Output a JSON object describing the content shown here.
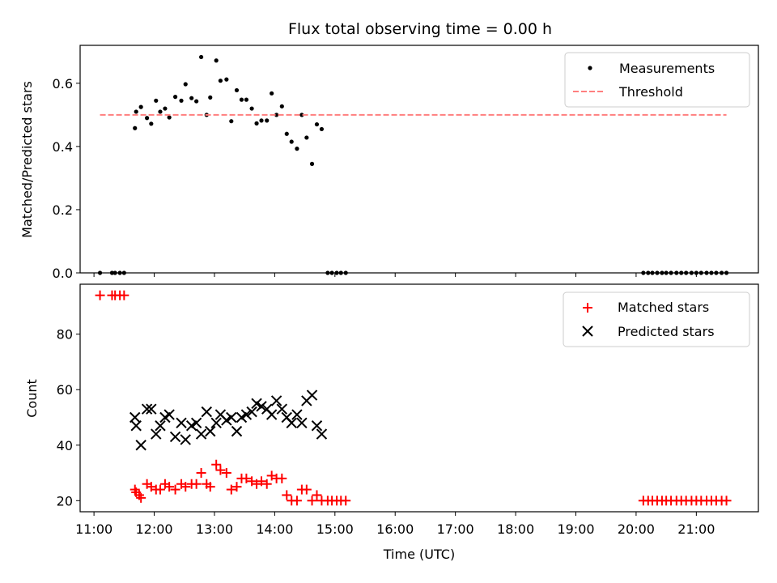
{
  "chart_data": [
    {
      "type": "scatter",
      "title": "Flux total observing time = 0.00 h",
      "xlabel": "",
      "ylabel": "Matched/Predicted stars",
      "xlim": [
        10.77,
        22.03
      ],
      "ylim": [
        0.0,
        0.72
      ],
      "yticks": [
        0.0,
        0.2,
        0.4,
        0.6
      ],
      "ytick_labels": [
        "0.0",
        "0.2",
        "0.4",
        "0.6"
      ],
      "legend_position": "upper right",
      "series": [
        {
          "name": "Measurements",
          "color": "#000000",
          "marker": "dot",
          "points": [
            [
              11.1,
              0.0
            ],
            [
              11.3,
              0.0
            ],
            [
              11.35,
              0.0
            ],
            [
              11.43,
              0.0
            ],
            [
              11.5,
              0.0
            ],
            [
              11.68,
              0.458
            ],
            [
              11.7,
              0.51
            ],
            [
              11.78,
              0.525
            ],
            [
              11.88,
              0.49
            ],
            [
              11.95,
              0.472
            ],
            [
              12.03,
              0.545
            ],
            [
              12.1,
              0.51
            ],
            [
              12.18,
              0.52
            ],
            [
              12.25,
              0.492
            ],
            [
              12.35,
              0.557
            ],
            [
              12.45,
              0.545
            ],
            [
              12.52,
              0.597
            ],
            [
              12.62,
              0.553
            ],
            [
              12.7,
              0.543
            ],
            [
              12.78,
              0.683
            ],
            [
              12.87,
              0.5
            ],
            [
              12.93,
              0.555
            ],
            [
              13.03,
              0.672
            ],
            [
              13.1,
              0.608
            ],
            [
              13.2,
              0.612
            ],
            [
              13.28,
              0.48
            ],
            [
              13.37,
              0.578
            ],
            [
              13.45,
              0.548
            ],
            [
              13.53,
              0.548
            ],
            [
              13.62,
              0.52
            ],
            [
              13.7,
              0.473
            ],
            [
              13.78,
              0.482
            ],
            [
              13.87,
              0.482
            ],
            [
              13.95,
              0.568
            ],
            [
              14.03,
              0.5
            ],
            [
              14.12,
              0.527
            ],
            [
              14.2,
              0.44
            ],
            [
              14.28,
              0.415
            ],
            [
              14.37,
              0.393
            ],
            [
              14.45,
              0.5
            ],
            [
              14.53,
              0.428
            ],
            [
              14.62,
              0.345
            ],
            [
              14.7,
              0.47
            ],
            [
              14.78,
              0.455
            ],
            [
              14.88,
              0.0
            ],
            [
              14.95,
              0.0
            ],
            [
              15.03,
              0.0
            ],
            [
              15.1,
              0.0
            ],
            [
              15.18,
              0.0
            ],
            [
              20.12,
              0.0
            ],
            [
              20.2,
              0.0
            ],
            [
              20.27,
              0.0
            ],
            [
              20.35,
              0.0
            ],
            [
              20.43,
              0.0
            ],
            [
              20.5,
              0.0
            ],
            [
              20.58,
              0.0
            ],
            [
              20.67,
              0.0
            ],
            [
              20.75,
              0.0
            ],
            [
              20.83,
              0.0
            ],
            [
              20.92,
              0.0
            ],
            [
              21.0,
              0.0
            ],
            [
              21.08,
              0.0
            ],
            [
              21.17,
              0.0
            ],
            [
              21.25,
              0.0
            ],
            [
              21.33,
              0.0
            ],
            [
              21.42,
              0.0
            ],
            [
              21.5,
              0.0
            ]
          ]
        },
        {
          "name": "Threshold",
          "color": "#ff7f7f",
          "style": "dashed",
          "x": [
            11.1,
            21.5
          ],
          "y": [
            0.5,
            0.5
          ]
        }
      ]
    },
    {
      "type": "scatter",
      "title": "",
      "xlabel": "Time (UTC)",
      "ylabel": "Count",
      "xlim": [
        10.77,
        22.03
      ],
      "ylim": [
        16.0,
        98.0
      ],
      "yticks": [
        20,
        40,
        60,
        80
      ],
      "ytick_labels": [
        "20",
        "40",
        "60",
        "80"
      ],
      "xticks": [
        11,
        12,
        13,
        14,
        15,
        16,
        17,
        18,
        19,
        20,
        21
      ],
      "xtick_labels": [
        "11:00",
        "12:00",
        "13:00",
        "14:00",
        "15:00",
        "16:00",
        "17:00",
        "18:00",
        "19:00",
        "20:00",
        "21:00"
      ],
      "legend_position": "upper right",
      "series": [
        {
          "name": "Matched stars",
          "color": "#ff0000",
          "marker": "plus",
          "points": [
            [
              11.1,
              94
            ],
            [
              11.3,
              94
            ],
            [
              11.35,
              94
            ],
            [
              11.43,
              94
            ],
            [
              11.5,
              94
            ],
            [
              11.68,
              24
            ],
            [
              11.7,
              23
            ],
            [
              11.75,
              22
            ],
            [
              11.78,
              21
            ],
            [
              11.88,
              26
            ],
            [
              11.95,
              25
            ],
            [
              12.03,
              24
            ],
            [
              12.1,
              24
            ],
            [
              12.18,
              26
            ],
            [
              12.25,
              25
            ],
            [
              12.35,
              24
            ],
            [
              12.45,
              26
            ],
            [
              12.52,
              25
            ],
            [
              12.62,
              26
            ],
            [
              12.7,
              26
            ],
            [
              12.78,
              30
            ],
            [
              12.87,
              26
            ],
            [
              12.93,
              25
            ],
            [
              13.03,
              33
            ],
            [
              13.1,
              31
            ],
            [
              13.2,
              30
            ],
            [
              13.28,
              24
            ],
            [
              13.37,
              25
            ],
            [
              13.45,
              28
            ],
            [
              13.53,
              28
            ],
            [
              13.62,
              27
            ],
            [
              13.7,
              26
            ],
            [
              13.78,
              27
            ],
            [
              13.87,
              26
            ],
            [
              13.95,
              29
            ],
            [
              14.03,
              28
            ],
            [
              14.12,
              28
            ],
            [
              14.2,
              22
            ],
            [
              14.28,
              20
            ],
            [
              14.37,
              20
            ],
            [
              14.45,
              24
            ],
            [
              14.53,
              24
            ],
            [
              14.62,
              20
            ],
            [
              14.7,
              22
            ],
            [
              14.78,
              20
            ],
            [
              14.88,
              20
            ],
            [
              14.95,
              20
            ],
            [
              15.03,
              20
            ],
            [
              15.1,
              20
            ],
            [
              15.18,
              20
            ],
            [
              20.12,
              20
            ],
            [
              20.2,
              20
            ],
            [
              20.27,
              20
            ],
            [
              20.35,
              20
            ],
            [
              20.43,
              20
            ],
            [
              20.5,
              20
            ],
            [
              20.58,
              20
            ],
            [
              20.67,
              20
            ],
            [
              20.75,
              20
            ],
            [
              20.83,
              20
            ],
            [
              20.92,
              20
            ],
            [
              21.0,
              20
            ],
            [
              21.08,
              20
            ],
            [
              21.17,
              20
            ],
            [
              21.25,
              20
            ],
            [
              21.33,
              20
            ],
            [
              21.42,
              20
            ],
            [
              21.5,
              20
            ]
          ]
        },
        {
          "name": "Predicted stars",
          "color": "#000000",
          "marker": "x",
          "points": [
            [
              11.68,
              50
            ],
            [
              11.7,
              47
            ],
            [
              11.78,
              40
            ],
            [
              11.88,
              53
            ],
            [
              11.95,
              53
            ],
            [
              12.03,
              44
            ],
            [
              12.1,
              47
            ],
            [
              12.18,
              50
            ],
            [
              12.25,
              51
            ],
            [
              12.35,
              43
            ],
            [
              12.45,
              48
            ],
            [
              12.52,
              42
            ],
            [
              12.62,
              47
            ],
            [
              12.7,
              48
            ],
            [
              12.78,
              44
            ],
            [
              12.87,
              52
            ],
            [
              12.93,
              45
            ],
            [
              13.03,
              48
            ],
            [
              13.1,
              51
            ],
            [
              13.2,
              49
            ],
            [
              13.28,
              50
            ],
            [
              13.37,
              45
            ],
            [
              13.45,
              50
            ],
            [
              13.53,
              51
            ],
            [
              13.62,
              52
            ],
            [
              13.7,
              55
            ],
            [
              13.78,
              54
            ],
            [
              13.87,
              53
            ],
            [
              13.95,
              51
            ],
            [
              14.03,
              56
            ],
            [
              14.12,
              53
            ],
            [
              14.2,
              50
            ],
            [
              14.28,
              48
            ],
            [
              14.37,
              51
            ],
            [
              14.45,
              48
            ],
            [
              14.53,
              56
            ],
            [
              14.62,
              58
            ],
            [
              14.7,
              47
            ],
            [
              14.78,
              44
            ]
          ]
        }
      ]
    }
  ]
}
